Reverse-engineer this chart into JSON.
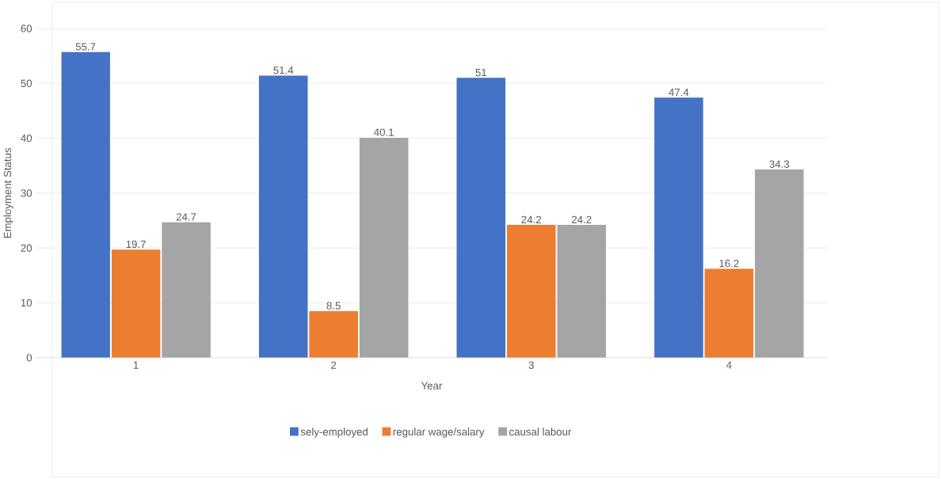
{
  "chart_data": {
    "type": "bar",
    "xlabel": "Year",
    "ylabel": "Employment Status",
    "categories": [
      "1",
      "2",
      "3",
      "4"
    ],
    "series": [
      {
        "name": "sely-employed",
        "color": "#4472c4",
        "values": [
          55.7,
          51.4,
          51,
          47.4
        ]
      },
      {
        "name": "regular wage/salary",
        "color": "#ed7d31",
        "values": [
          19.7,
          8.5,
          24.2,
          16.2
        ]
      },
      {
        "name": "causal labour",
        "color": "#a5a5a5",
        "values": [
          24.7,
          40.1,
          24.2,
          34.3
        ]
      }
    ],
    "ylim": [
      0,
      60
    ],
    "yticks": [
      0,
      10,
      20,
      30,
      40,
      50,
      60
    ],
    "grid": "y",
    "legend": "bottom",
    "data_labels": true
  }
}
